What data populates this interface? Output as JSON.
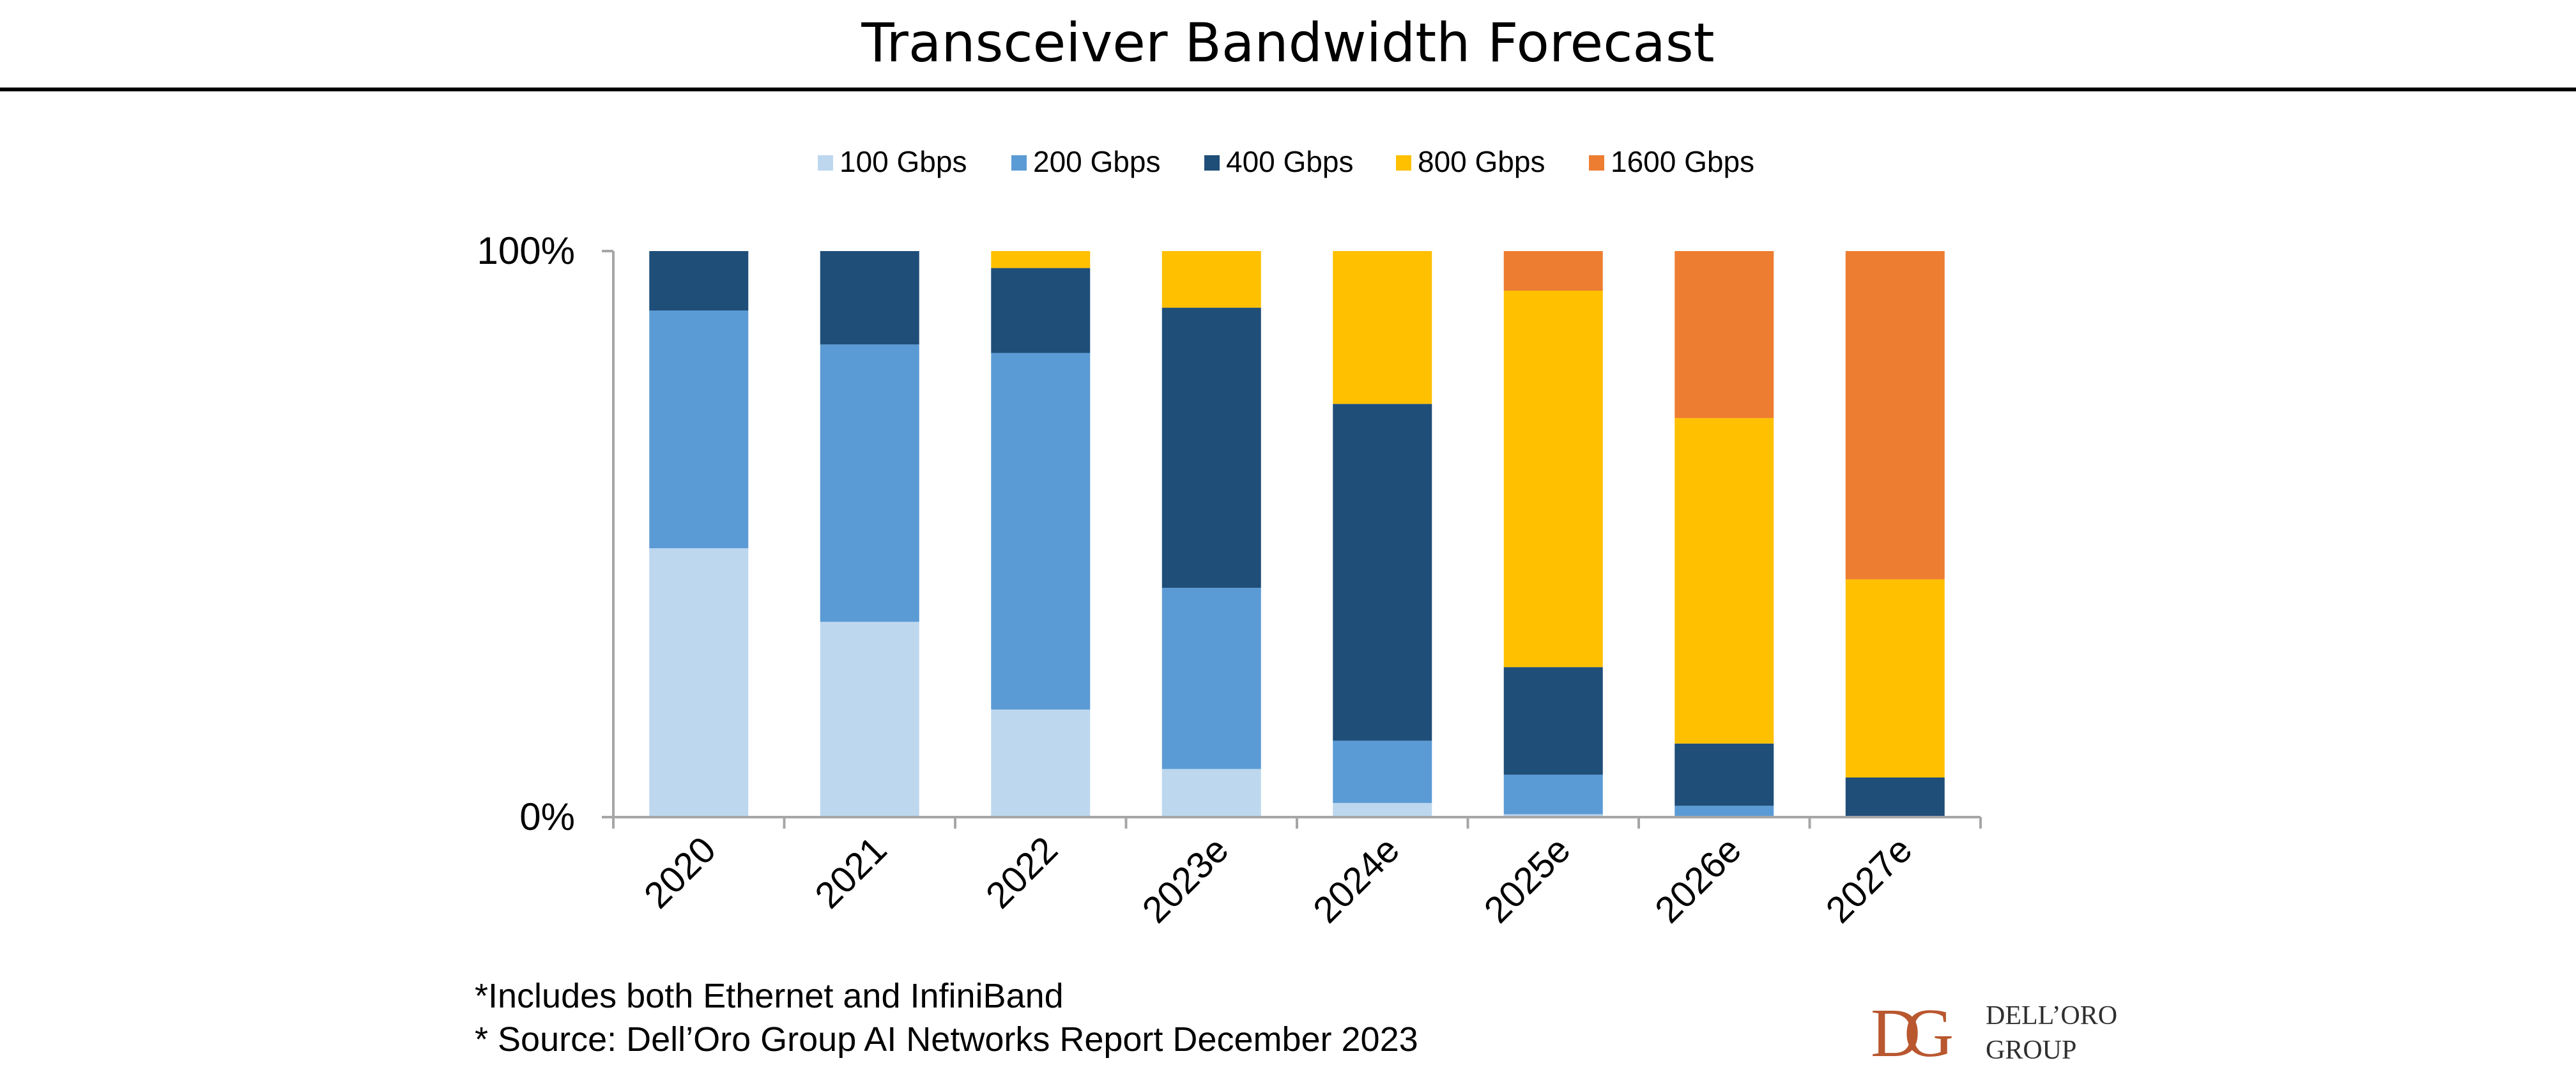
{
  "title": "Transceiver Bandwidth Forecast",
  "footnotes": [
    "*Includes both Ethernet and InfiniBand",
    "* Source: Dell’Oro Group AI Networks Report December 2023"
  ],
  "logo": {
    "line1": "DELL’ORO",
    "line2": "GROUP"
  },
  "chart_data": {
    "type": "bar",
    "stacked": true,
    "percent_stacked": true,
    "categories": [
      "2020",
      "2021",
      "2022",
      "2023e",
      "2024e",
      "2025e",
      "2026e",
      "2027e"
    ],
    "series": [
      {
        "name": "100 Gbps",
        "color": "#bdd7ee",
        "values": [
          47.5,
          34.5,
          19,
          8.5,
          2.5,
          0.5,
          0,
          0
        ]
      },
      {
        "name": "200 Gbps",
        "color": "#5b9bd5",
        "values": [
          42,
          49,
          63,
          32,
          11,
          7,
          2,
          0
        ]
      },
      {
        "name": "400 Gbps",
        "color": "#1f4e79",
        "values": [
          10.5,
          16.5,
          15,
          49.5,
          59.5,
          19,
          11,
          7
        ]
      },
      {
        "name": "800 Gbps",
        "color": "#ffc000",
        "values": [
          0,
          0,
          3,
          10,
          27,
          66.5,
          57.5,
          35
        ]
      },
      {
        "name": "1600 Gbps",
        "color": "#ed7d31",
        "values": [
          0,
          0,
          0,
          0,
          0,
          7,
          29.5,
          58
        ]
      }
    ],
    "yticks": [
      "0%",
      "100%"
    ],
    "ylim": [
      0,
      100
    ],
    "legend_position": "top",
    "grid": false
  }
}
